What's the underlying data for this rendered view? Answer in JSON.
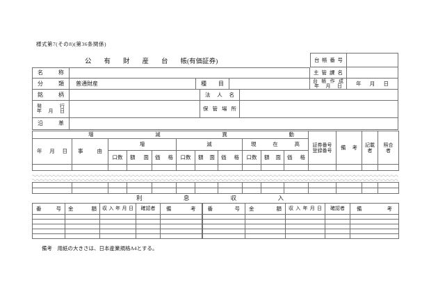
{
  "form": {
    "number": "様式第7(その8)(第36条関係)",
    "title_main": "公有財産台帳",
    "title_suffix": "(有価証券)",
    "note": "備考　用紙の大きさは、日本産業規格A4とする。"
  },
  "ledger_box": {
    "number_label": "台帳番号",
    "number_value": "",
    "section_label": "主管課名",
    "section_value": "",
    "created_label": [
      "台帳作成",
      "年月日"
    ],
    "created_value": "年月日"
  },
  "info": {
    "name_label": "名称",
    "name_value": "",
    "class_label": "分類",
    "class_value": "普通財産",
    "type_label": "種目",
    "type_value": "",
    "brand_label": "銘柄",
    "brand_value": "",
    "corp_label": "法人名",
    "corp_value": "",
    "issue_label": [
      "発行",
      "年月日"
    ],
    "issue_value": "",
    "storage_label": "保管場所",
    "storage_value": "",
    "history_label": "沿革",
    "history_value": ""
  },
  "movement_table": {
    "band_title": "増減異動",
    "date_label": "年月日",
    "reason_label": "事由",
    "increase_label": "増",
    "decrease_label": "減",
    "balance_label": "現在高",
    "units_label": "口数",
    "face_label": "額面",
    "price_label": "価格",
    "cert_label": [
      "証券番号",
      "登録番号"
    ],
    "remarks_label": "備考",
    "recorder_label": [
      "記載",
      "者"
    ],
    "checker_label": [
      "照合",
      "者"
    ]
  },
  "interest_table": {
    "title": "利息収入",
    "col_number": "番号",
    "col_amount": "金額",
    "col_date": "収入年月日",
    "col_confirmer": "確認者",
    "col_remarks": "備考"
  }
}
